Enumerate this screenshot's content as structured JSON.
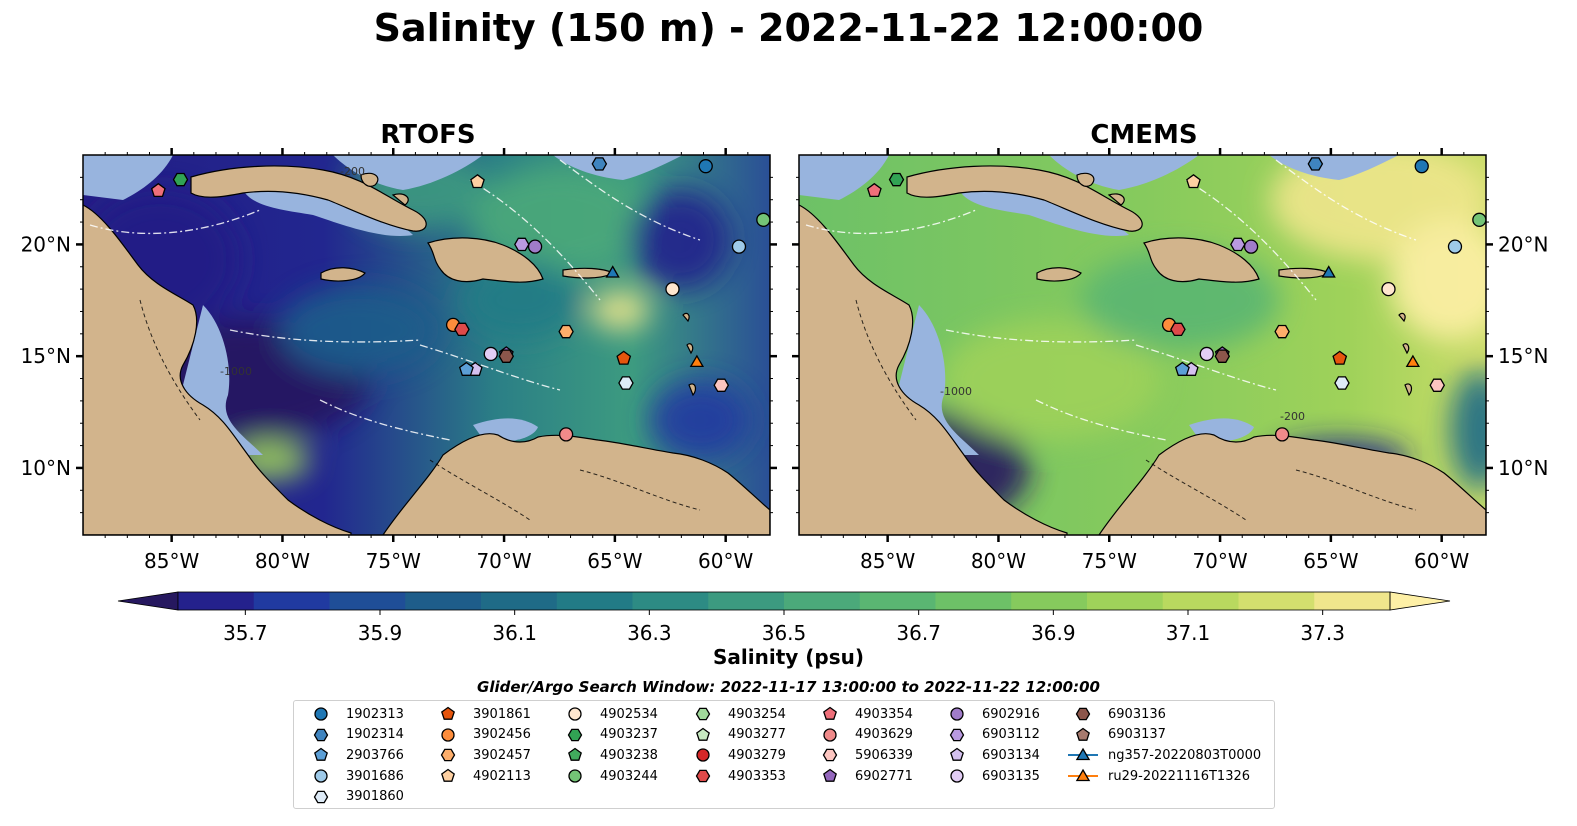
{
  "title": "Salinity (150 m) - 2022-11-22 12:00:00",
  "panels": [
    {
      "title": "RTOFS",
      "colormap_bias": "low"
    },
    {
      "title": "CMEMS",
      "colormap_bias": "high"
    }
  ],
  "map": {
    "lon_range": [
      -89,
      -58
    ],
    "lat_range": [
      7,
      24
    ],
    "lon_ticks": [
      "85°W",
      "80°W",
      "75°W",
      "70°W",
      "65°W",
      "60°W"
    ],
    "lon_tick_values": [
      -85,
      -80,
      -75,
      -70,
      -65,
      -60
    ],
    "lat_ticks": [
      "10°N",
      "15°N",
      "20°N"
    ],
    "lat_tick_values": [
      10,
      15,
      20
    ],
    "land_color": "#d2b48c",
    "shelf_color": "#98b4de",
    "bathymetry_labels": [
      "-200",
      "-1000"
    ]
  },
  "colorbar": {
    "label": "Salinity (psu)",
    "min": 35.6,
    "max": 37.4,
    "ticks": [
      "35.7",
      "35.9",
      "36.1",
      "36.3",
      "36.5",
      "36.7",
      "36.9",
      "37.1",
      "37.3"
    ],
    "tick_values": [
      35.7,
      35.9,
      36.1,
      36.3,
      36.5,
      36.7,
      36.9,
      37.1,
      37.3
    ],
    "colors": [
      "#26185f",
      "#24218c",
      "#203aa0",
      "#1f4e97",
      "#1e5d8a",
      "#1f6b87",
      "#227b86",
      "#2d8b84",
      "#3c9a80",
      "#4ba97a",
      "#5ab672",
      "#6dc167",
      "#86ca5d",
      "#9fd25a",
      "#b9d95f",
      "#d3df6e",
      "#f0e68c",
      "#fef0a6"
    ]
  },
  "legend": {
    "title": "Glider/Argo Search Window: 2022-11-17 13:00:00 to 2022-11-22 12:00:00",
    "items": [
      {
        "label": "1902313",
        "marker": "circle",
        "color": "#1f77b4"
      },
      {
        "label": "1902314",
        "marker": "hexagon",
        "color": "#3f84bf"
      },
      {
        "label": "2903766",
        "marker": "pentagon",
        "color": "#5c9fd6"
      },
      {
        "label": "3901686",
        "marker": "circle",
        "color": "#9ecae9"
      },
      {
        "label": "3901860",
        "marker": "hexagon",
        "color": "#deebf7"
      },
      {
        "label": "3901861",
        "marker": "pentagon",
        "color": "#e6550d"
      },
      {
        "label": "3902456",
        "marker": "circle",
        "color": "#fd8d3c"
      },
      {
        "label": "3902457",
        "marker": "hexagon",
        "color": "#fdae6b"
      },
      {
        "label": "4902113",
        "marker": "pentagon",
        "color": "#fdd0a2"
      },
      {
        "label": "4902534",
        "marker": "circle",
        "color": "#fee6ce"
      },
      {
        "label": "4903237",
        "marker": "hexagon",
        "color": "#31a354"
      },
      {
        "label": "4903238",
        "marker": "pentagon",
        "color": "#41ab5d"
      },
      {
        "label": "4903244",
        "marker": "circle",
        "color": "#74c476"
      },
      {
        "label": "4903254",
        "marker": "hexagon",
        "color": "#a1d99b"
      },
      {
        "label": "4903277",
        "marker": "pentagon",
        "color": "#c7e9c0"
      },
      {
        "label": "4903279",
        "marker": "circle",
        "color": "#d62728"
      },
      {
        "label": "4903353",
        "marker": "hexagon",
        "color": "#de4a4a"
      },
      {
        "label": "4903354",
        "marker": "pentagon",
        "color": "#ef6f7a"
      },
      {
        "label": "4903629",
        "marker": "circle",
        "color": "#f08a8a"
      },
      {
        "label": "5906339",
        "marker": "hexagon",
        "color": "#fcc5c0"
      },
      {
        "label": "6902771",
        "marker": "pentagon",
        "color": "#9467bd"
      },
      {
        "label": "6902916",
        "marker": "circle",
        "color": "#a07cc9"
      },
      {
        "label": "6903112",
        "marker": "hexagon",
        "color": "#b99ae0"
      },
      {
        "label": "6903134",
        "marker": "pentagon",
        "color": "#d4c1ef"
      },
      {
        "label": "6903135",
        "marker": "circle",
        "color": "#e2cdf5"
      },
      {
        "label": "6903136",
        "marker": "hexagon",
        "color": "#8c564b"
      },
      {
        "label": "6903137",
        "marker": "pentagon",
        "color": "#a77a6e"
      },
      {
        "label": "ng357-20220803T0000",
        "marker": "triangle-line",
        "color": "#1f77b4"
      },
      {
        "label": "ru29-20221116T1326",
        "marker": "triangle-line",
        "color": "#ff7f0e"
      }
    ]
  },
  "floats": [
    {
      "id": "1902313",
      "lon": -60.9,
      "lat": 23.5
    },
    {
      "id": "1902314",
      "lon": -65.7,
      "lat": 23.6
    },
    {
      "id": "3901686",
      "lon": -59.4,
      "lat": 19.9
    },
    {
      "id": "3901860",
      "lon": -64.5,
      "lat": 13.8
    },
    {
      "id": "3901861",
      "lon": -64.6,
      "lat": 14.9
    },
    {
      "id": "3902456",
      "lon": -72.3,
      "lat": 16.4
    },
    {
      "id": "3902457",
      "lon": -67.2,
      "lat": 16.1
    },
    {
      "id": "4902113",
      "lon": -71.2,
      "lat": 22.8
    },
    {
      "id": "4902534",
      "lon": -62.4,
      "lat": 18.0
    },
    {
      "id": "4903237",
      "lon": -84.6,
      "lat": 22.9
    },
    {
      "id": "4903244",
      "lon": -58.3,
      "lat": 21.1
    },
    {
      "id": "4903353",
      "lon": -71.9,
      "lat": 16.2
    },
    {
      "id": "4903354",
      "lon": -85.6,
      "lat": 22.4
    },
    {
      "id": "4903629",
      "lon": -67.2,
      "lat": 11.5
    },
    {
      "id": "5906339",
      "lon": -60.2,
      "lat": 13.7
    },
    {
      "id": "6902771",
      "lon": -69.9,
      "lat": 15.1
    },
    {
      "id": "6902916",
      "lon": -68.6,
      "lat": 19.9
    },
    {
      "id": "6903112",
      "lon": -69.2,
      "lat": 20.0
    },
    {
      "id": "6903134",
      "lon": -71.3,
      "lat": 14.4
    },
    {
      "id": "6903135",
      "lon": -70.6,
      "lat": 15.1
    },
    {
      "id": "6903136",
      "lon": -69.9,
      "lat": 15.0
    },
    {
      "id": "2903766",
      "lon": -71.7,
      "lat": 14.4
    },
    {
      "id": "ng357-20220803T0000",
      "lon": -65.1,
      "lat": 18.7
    },
    {
      "id": "ru29-20221116T1326",
      "lon": -61.3,
      "lat": 14.7
    }
  ]
}
